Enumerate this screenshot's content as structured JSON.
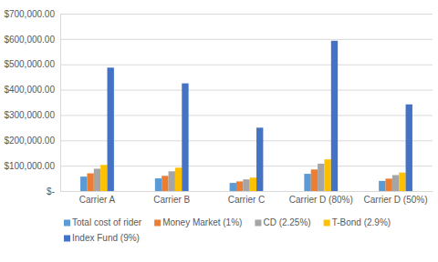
{
  "chart_data": {
    "type": "bar",
    "categories": [
      "Carrier A",
      "Carrier B",
      "Carrier C",
      "Carrier D (80%)",
      "Carrier D (50%)"
    ],
    "series": [
      {
        "name": "Total cost of rider",
        "color": "#5b9bd5",
        "values": [
          57000,
          50000,
          32000,
          68000,
          40000
        ]
      },
      {
        "name": "Money Market (1%)",
        "color": "#ed7d31",
        "values": [
          70000,
          60000,
          38000,
          85000,
          49000
        ]
      },
      {
        "name": "CD (2.25%)",
        "color": "#a5a5a5",
        "values": [
          88000,
          78000,
          46000,
          108000,
          63000
        ]
      },
      {
        "name": "T-Bond (2.9%)",
        "color": "#ffc000",
        "values": [
          103000,
          92000,
          53000,
          125000,
          73000
        ]
      },
      {
        "name": "Index Fund (9%)",
        "color": "#4472c4",
        "values": [
          487000,
          425000,
          250000,
          593000,
          342000
        ]
      }
    ],
    "ylim": [
      0,
      700000
    ],
    "yticks": [
      {
        "value": 0,
        "label": "$-"
      },
      {
        "value": 100000,
        "label": "$100,000.00"
      },
      {
        "value": 200000,
        "label": "$200,000.00"
      },
      {
        "value": 300000,
        "label": "$300,000.00"
      },
      {
        "value": 400000,
        "label": "$400,000.00"
      },
      {
        "value": 500000,
        "label": "$500,000.00"
      },
      {
        "value": 600000,
        "label": "$600,000.00"
      },
      {
        "value": 700000,
        "label": "$700,000.00"
      }
    ],
    "grid": true,
    "legend": "bottom"
  }
}
